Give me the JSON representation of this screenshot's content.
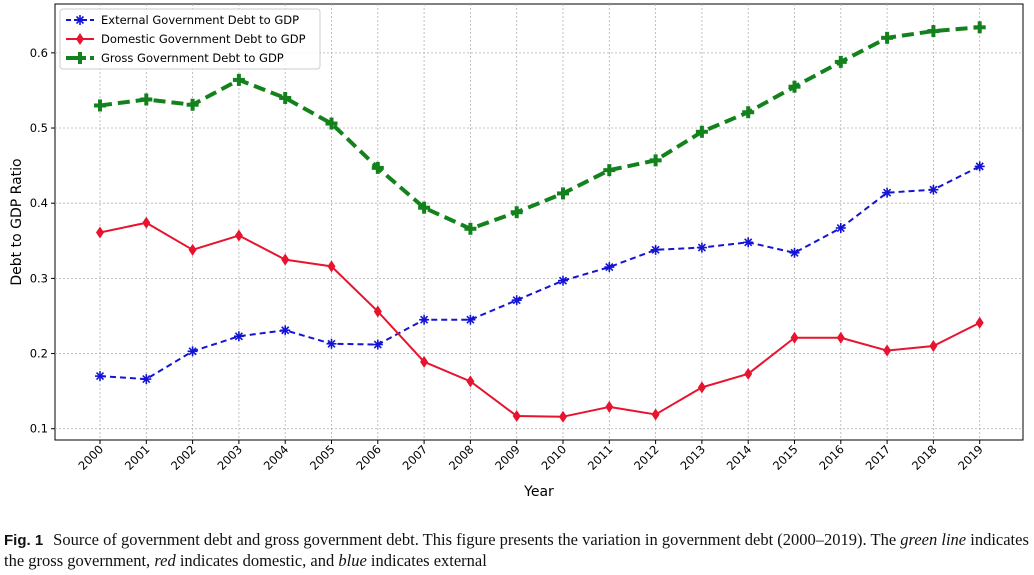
{
  "chart_data": {
    "type": "line",
    "xlabel": "Year",
    "ylabel": "Debt to GDP Ratio",
    "ylim": [
      0.085,
      0.665
    ],
    "yticks": [
      "0.1",
      "0.2",
      "0.3",
      "0.4",
      "0.5",
      "0.6"
    ],
    "grid": true,
    "legend_position": "top-left",
    "categories": [
      "2000",
      "2001",
      "2002",
      "2003",
      "2004",
      "2005",
      "2006",
      "2007",
      "2008",
      "2009",
      "2010",
      "2011",
      "2012",
      "2013",
      "2014",
      "2015",
      "2016",
      "2017",
      "2018",
      "2019"
    ],
    "series": [
      {
        "name": "External Government Debt to GDP",
        "color": "#1414d6",
        "line_style": "dashed",
        "marker": "star",
        "values": [
          0.17,
          0.166,
          0.203,
          0.223,
          0.231,
          0.213,
          0.212,
          0.245,
          0.245,
          0.271,
          0.297,
          0.315,
          0.338,
          0.341,
          0.348,
          0.334,
          0.367,
          0.414,
          0.418,
          0.449
        ]
      },
      {
        "name": "Domestic Government Debt to GDP",
        "color": "#e8132e",
        "line_style": "solid",
        "marker": "diamond",
        "values": [
          0.361,
          0.374,
          0.338,
          0.357,
          0.325,
          0.316,
          0.256,
          0.189,
          0.163,
          0.117,
          0.116,
          0.129,
          0.119,
          0.155,
          0.173,
          0.221,
          0.221,
          0.204,
          0.21,
          0.241
        ]
      },
      {
        "name": "Gross Government Debt to GDP",
        "color": "#13821d",
        "line_style": "dashed",
        "marker": "plus",
        "values": [
          0.53,
          0.538,
          0.531,
          0.564,
          0.54,
          0.506,
          0.447,
          0.394,
          0.366,
          0.388,
          0.413,
          0.444,
          0.457,
          0.495,
          0.521,
          0.555,
          0.588,
          0.62,
          0.629,
          0.634
        ]
      }
    ]
  },
  "caption": {
    "label": "Fig. 1",
    "text_1": "Source of government debt and gross government debt. This figure presents the variation in government debt (2000–2019). The ",
    "green_word": "green line",
    "text_2": " indicates the gross government, ",
    "red_word": "red",
    "text_3": " indicates domestic, and ",
    "blue_word": "blue",
    "text_4": " indicates external"
  }
}
